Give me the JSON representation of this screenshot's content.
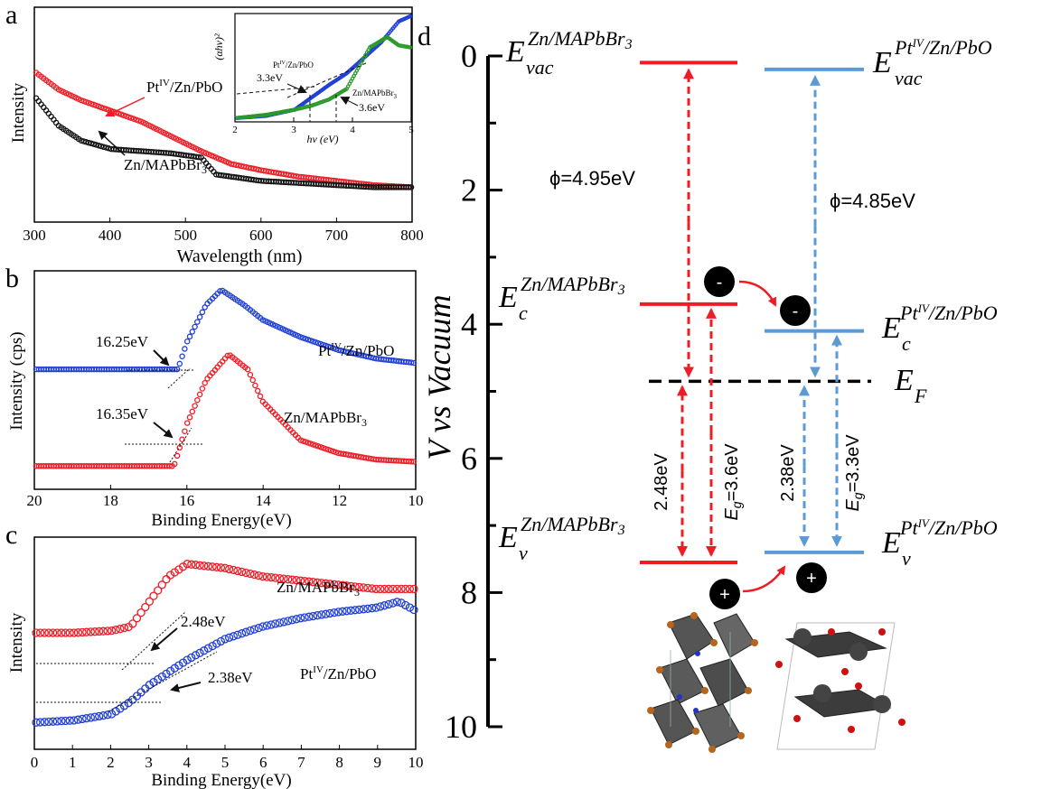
{
  "colors": {
    "red": "#ee1c25",
    "blue": "#1f3fd6",
    "black": "#111111",
    "green": "#2a9a2a",
    "lightblue": "#5b9bd5"
  },
  "chart_data": [
    {
      "panel": "a",
      "type": "line",
      "xlabel": "Wavelength (nm)",
      "ylabel": "Intensity",
      "xlim": [
        300,
        800
      ],
      "xticks": [
        "300",
        "400",
        "500",
        "600",
        "700",
        "800"
      ],
      "series": [
        {
          "name": "Ptᴵⱽ/Zn/PbO",
          "color": "red",
          "x": [
            300,
            330,
            360,
            400,
            440,
            480,
            520,
            560,
            600,
            650,
            700,
            750,
            800
          ],
          "y": [
            0.7,
            0.62,
            0.57,
            0.52,
            0.47,
            0.4,
            0.33,
            0.27,
            0.24,
            0.21,
            0.19,
            0.17,
            0.16
          ]
        },
        {
          "name": "Zn/MAPbBr₃",
          "color": "black",
          "x": [
            300,
            330,
            360,
            400,
            440,
            480,
            520,
            540,
            560,
            600,
            650,
            700,
            750,
            800
          ],
          "y": [
            0.58,
            0.45,
            0.38,
            0.34,
            0.33,
            0.32,
            0.3,
            0.22,
            0.21,
            0.19,
            0.18,
            0.17,
            0.16,
            0.16
          ]
        }
      ],
      "inset": {
        "xlabel": "hv (eV)",
        "ylabel": "(αhv)²",
        "xlim": [
          2,
          5
        ],
        "xticks": [
          "2",
          "3",
          "4",
          "5"
        ],
        "annotations": [
          "3.3eV",
          "3.6eV",
          "Ptᴵⱽ/Zn/PbO",
          "Zn/MAPbBr₃"
        ],
        "series": [
          {
            "name": "Ptᴵⱽ/Zn/PbO",
            "color": "blue",
            "x": [
              2.0,
              2.5,
              3.0,
              3.3,
              3.6,
              3.9,
              4.2,
              4.5,
              4.8,
              5.0
            ],
            "y": [
              0.02,
              0.04,
              0.1,
              0.22,
              0.34,
              0.45,
              0.6,
              0.75,
              0.95,
              1.0
            ]
          },
          {
            "name": "Zn/MAPbBr₃",
            "color": "green",
            "x": [
              2.0,
              2.5,
              3.0,
              3.3,
              3.6,
              3.9,
              4.1,
              4.3,
              4.6,
              4.8,
              5.0
            ],
            "y": [
              0.02,
              0.05,
              0.1,
              0.14,
              0.2,
              0.3,
              0.5,
              0.7,
              0.8,
              0.72,
              0.7
            ]
          }
        ]
      }
    },
    {
      "panel": "b",
      "type": "line",
      "xlabel": "Binding Energy(eV)",
      "ylabel": "Intensity (cps)",
      "xlim": [
        20,
        10
      ],
      "xticks": [
        "20",
        "18",
        "16",
        "14",
        "12",
        "10"
      ],
      "annotations": [
        "16.25eV",
        "16.35eV"
      ],
      "series": [
        {
          "name": "Ptᴵⱽ/Zn/PbO",
          "color": "blue",
          "x": [
            20,
            18,
            17,
            16.25,
            16,
            15.5,
            15.1,
            14.5,
            14,
            13,
            12,
            11,
            10
          ],
          "y": [
            0.55,
            0.55,
            0.55,
            0.55,
            0.68,
            0.85,
            0.92,
            0.85,
            0.78,
            0.7,
            0.64,
            0.6,
            0.58
          ]
        },
        {
          "name": "Zn/MAPbBr₃",
          "color": "red",
          "x": [
            20,
            18,
            17,
            16.35,
            16,
            15.5,
            14.9,
            14.4,
            14,
            13,
            12,
            11,
            10
          ],
          "y": [
            0.1,
            0.1,
            0.1,
            0.1,
            0.3,
            0.5,
            0.62,
            0.55,
            0.4,
            0.22,
            0.16,
            0.13,
            0.12
          ]
        }
      ]
    },
    {
      "panel": "c",
      "type": "line",
      "xlabel": "Binding Energy(eV)",
      "ylabel": "Intensity",
      "xlim": [
        0,
        10
      ],
      "xticks": [
        "0",
        "1",
        "2",
        "3",
        "4",
        "5",
        "6",
        "7",
        "8",
        "9",
        "10"
      ],
      "annotations": [
        "2.48eV",
        "2.38eV"
      ],
      "series": [
        {
          "name": "Zn/MAPbBr₃",
          "color": "red",
          "x": [
            0,
            1,
            2,
            2.5,
            3,
            3.5,
            4,
            5,
            6,
            7,
            8,
            9,
            10
          ],
          "y": [
            0.55,
            0.55,
            0.56,
            0.58,
            0.7,
            0.82,
            0.88,
            0.86,
            0.82,
            0.8,
            0.78,
            0.76,
            0.76
          ]
        },
        {
          "name": "Ptᴵⱽ/Zn/PbO",
          "color": "blue",
          "x": [
            0,
            1,
            2,
            2.5,
            3,
            4,
            5,
            6,
            7,
            8,
            9,
            9.6,
            10
          ],
          "y": [
            0.12,
            0.13,
            0.16,
            0.22,
            0.3,
            0.42,
            0.52,
            0.58,
            0.62,
            0.65,
            0.67,
            0.7,
            0.66
          ]
        }
      ]
    },
    {
      "panel": "d",
      "type": "diagram",
      "ylabel": "V vs Vacuum",
      "ylim": [
        0,
        10
      ],
      "yticks": [
        "0",
        "2",
        "4",
        "6",
        "8",
        "10"
      ],
      "levels": {
        "mapbbr3": {
          "vac": 0.1,
          "c": 3.7,
          "v": 7.55,
          "color": "red"
        },
        "pbo": {
          "vac": 0.2,
          "c": 4.1,
          "v": 7.4,
          "color": "lightblue"
        },
        "fermi": 4.85
      },
      "labels": {
        "phi_left": "ϕ=4.95eV",
        "phi_right": "ϕ=4.85eV",
        "gap_left_vf": "2.48eV",
        "gap_left_eg": "=3.6eV",
        "gap_right_vf": "2.38eV",
        "gap_right_eg": "=3.3eV",
        "eg_symbol": "E",
        "eg_sub": "g",
        "e_sym": "E",
        "sub_vac": "vac",
        "sub_c": "c",
        "sub_v": "v",
        "sub_f": "F",
        "sup_mapbbr": "Zn/MAPbBr",
        "sup_mapbbr_3": "3",
        "sup_pt": "Pt",
        "sup_pt_iv": "IV",
        "sup_pt_rest": "/Zn/PbO",
        "sup_pt_full_vac": "Ptᴵⱽ/Zn/PbO",
        "minus": "-",
        "plus": "+"
      }
    }
  ],
  "panel_letters": {
    "a": "a",
    "b": "b",
    "c": "c",
    "d": "d"
  },
  "legend_labels": {
    "a_red_pre": "Pt",
    "a_red_sup": "IV",
    "a_red_post": "/Zn/PbO",
    "a_black_pre": "Zn/MAPbBr",
    "a_black_sub": "3",
    "b_blue_pre": "Pt",
    "b_blue_sup": "IV",
    "b_blue_post": "/Zn/PbO",
    "b_red_pre": "Zn/MAPbBr",
    "b_red_sub": "3",
    "c_red_pre": "Zn/MAPbBr",
    "c_red_sub": "3",
    "c_blue_pre": "Pt",
    "c_blue_sup": "IV",
    "c_blue_post": "/Zn/PbO",
    "inset_blue_pre": "Pt",
    "inset_blue_sup": "IV",
    "inset_blue_post": "/Zn/PbO",
    "inset_green_pre": "Zn/MAPbBr",
    "inset_green_sub": "3",
    "inset_v1": "3.3eV",
    "inset_v2": "3.6eV",
    "b_ann1": "16.25eV",
    "b_ann2": "16.35eV",
    "c_ann1": "2.48eV",
    "c_ann2": "2.38eV"
  }
}
